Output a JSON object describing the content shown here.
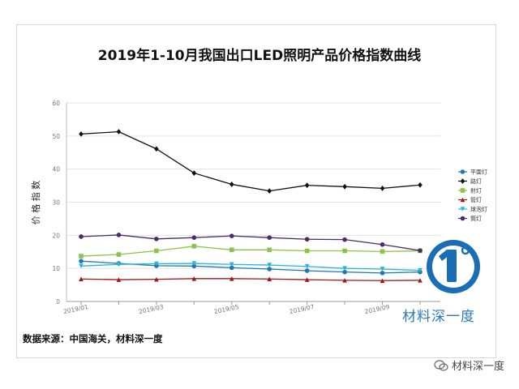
{
  "chart_data": {
    "type": "line",
    "title": "2019年1-10月我国出口LED照明产品价格指数曲线",
    "ylabel": "价 格 指 数",
    "xlabel": "",
    "ylim": [
      0,
      60
    ],
    "yticks": [
      0,
      10,
      20,
      30,
      40,
      50,
      60
    ],
    "x": [
      "2019/01",
      "2019/02",
      "2019/03",
      "2019/04",
      "2019/05",
      "2019/06",
      "2019/07",
      "2019/08",
      "2019/09",
      "2019/10"
    ],
    "xtick_labels": [
      "2019/01",
      "2019/03",
      "2019/05",
      "2019/07",
      "2019/09"
    ],
    "legend_position": "right",
    "grid": true,
    "series": [
      {
        "name": "平面灯",
        "color": "#1f77b4",
        "marker": "circle",
        "values": [
          12.2,
          11.5,
          10.8,
          10.7,
          10.2,
          9.8,
          9.3,
          8.9,
          8.6,
          8.9
        ]
      },
      {
        "name": "路灯",
        "color": "#111111",
        "marker": "diamond",
        "values": [
          50.6,
          51.3,
          46.1,
          38.8,
          35.4,
          33.4,
          35.1,
          34.7,
          34.2,
          35.2
        ]
      },
      {
        "name": "射灯",
        "color": "#8bc34a",
        "marker": "square",
        "values": [
          13.7,
          14.2,
          15.3,
          16.7,
          15.6,
          15.6,
          15.3,
          15.3,
          15.1,
          15.3
        ]
      },
      {
        "name": "管灯",
        "color": "#a31515",
        "marker": "triangle",
        "values": [
          6.8,
          6.6,
          6.7,
          6.9,
          6.9,
          6.8,
          6.6,
          6.4,
          6.3,
          6.4
        ]
      },
      {
        "name": "球泡灯",
        "color": "#29b6d6",
        "marker": "tridown",
        "values": [
          10.7,
          11.2,
          11.4,
          11.5,
          11.2,
          11.0,
          10.6,
          10.0,
          9.8,
          9.4
        ]
      },
      {
        "name": "筒灯",
        "color": "#4b2a6b",
        "marker": "circle",
        "values": [
          19.6,
          20.1,
          18.9,
          19.3,
          19.8,
          19.3,
          18.8,
          18.7,
          17.2,
          15.4
        ]
      }
    ]
  },
  "source_note": "数据来源：中国海关，材料深一度",
  "logo_text": "材料深一度",
  "watermark": "材料深一度"
}
